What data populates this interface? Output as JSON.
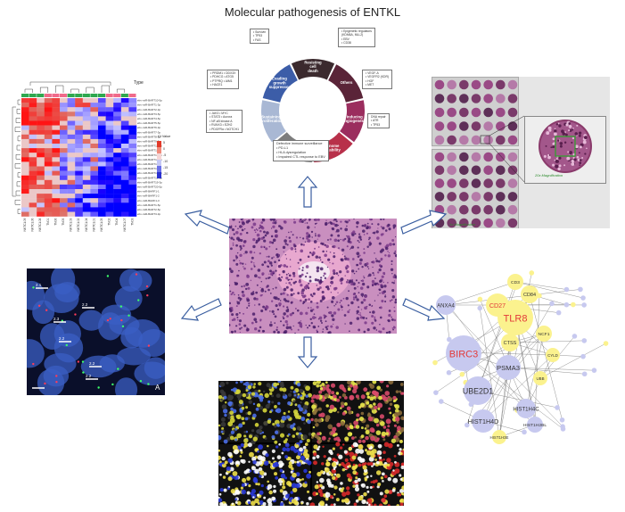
{
  "title": "Molecular pathogenesis of ENTKL",
  "hallmarks": {
    "segments": [
      {
        "label": "Others",
        "color": "#5a2438"
      },
      {
        "label": "Inducing angiogenesis",
        "color": "#9b2d5e"
      },
      {
        "label": "Genome instability",
        "color": "#b8304a"
      },
      {
        "label": "Immune Evasion",
        "color": "#7d7d7d"
      },
      {
        "label": "Sustaining proliferation",
        "color": "#a9b8d4"
      },
      {
        "label": "Evading growth suppressor",
        "color": "#3c5da8"
      },
      {
        "label": "Resisting cell death",
        "color": "#3b2a2e"
      }
    ],
    "boxes": {
      "resisting": [
        "• Survivin",
        "• TP53",
        "• FAS"
      ],
      "others": [
        "• Epigenetic regulators",
        "  (KDM6A, MLL2)",
        "• EBV",
        "• CD38"
      ],
      "angio": [
        "• VEGF-A",
        "• VEGFR2 (KDR)",
        "• HGF",
        "• MET"
      ],
      "genome": [
        "DNA repair",
        "• ATR",
        "• TP53"
      ],
      "immune": [
        "Defective immune surveillance",
        "• PD-L1",
        "• HLA dysregulation",
        "• Impaired CTL response to EBV"
      ],
      "proliferation": [
        "• JAK3    • MYC",
        "• STAT3   • Aurora",
        "• NF-κB     kinase A",
        "• RUNX3   • EZH2",
        "• PDGFRα  • NOTCH1"
      ],
      "growth": [
        "• PRDM1   • DDX3X",
        "• PDHCG   • ATG5",
        "• PTPRQ   • AIM1",
        "• HACE1"
      ]
    }
  },
  "heatmap": {
    "legend_label": "Type",
    "colorbar_label": "Ct Value",
    "colorbar_ticks": [
      "5",
      "0",
      "-5",
      "-10",
      "-15",
      "-20"
    ],
    "row_labels": [
      "ebv-miR-BART10-5p",
      "ebv-miR-BART1-3p",
      "ebv-miR-BART2-3p",
      "ebv-miR-BART3-5p",
      "ebv-miR-BART4-5p",
      "ebv-miR-BART5-5p",
      "ebv-miR-BART6-3p",
      "ebv-miR-BART7-3p",
      "ebv-miR-BART8-5p",
      "ebv-miR-BART9-3p",
      "ebv-miR-BART11-3p",
      "ebv-miR-BART12",
      "ebv-miR-BART13-3p",
      "ebv-miR-BART14-3p",
      "ebv-miR-BART15",
      "ebv-miR-BART16",
      "ebv-miR-BART17-5p",
      "ebv-miR-BART18-5p",
      "ebv-miR-BART19-3p",
      "ebv-miR-BART20-5p",
      "ebv-miR-BHRF1-1",
      "ebv-miR-BHRF1-2",
      "ebv-miR-BHRF1-3",
      "ebv-miR-BART1-5p",
      "ebv-miR-BART2-5p",
      "ebv-miR-BART3-3p"
    ],
    "col_labels": [
      "NKTCL09",
      "NKTCL06",
      "NKTCL08",
      "TN01",
      "TN06",
      "TN05",
      "NKTCL03",
      "NKTCL02",
      "NKTCL04",
      "NKTCL01",
      "NKTCL05",
      "TN02",
      "TN04",
      "NKTCL07",
      "TN03"
    ]
  },
  "tma": {
    "label_2x": "20x Magnification",
    "label_1x": "1x Magnification"
  },
  "fish": {
    "scale_labels": [
      "2.1",
      "2.2",
      "2.3",
      "2.2",
      "2.2",
      "2.2"
    ],
    "corner": "A"
  },
  "network": {
    "nodes": [
      {
        "label": "BIRC3",
        "color": "#e23a3a",
        "fill": "#c7c9ef"
      },
      {
        "label": "TLR8",
        "color": "#e23a3a",
        "fill": "#fbf28e"
      },
      {
        "label": "CD27",
        "color": "#e23a3a",
        "fill": "#fbf28e"
      },
      {
        "label": "UBE2D1",
        "color": "#333333",
        "fill": "#c7c9ef"
      },
      {
        "label": "PSMA3",
        "color": "#333333",
        "fill": "#c7c9ef"
      },
      {
        "label": "ANXA4",
        "color": "#333333",
        "fill": "#c7c9ef"
      },
      {
        "label": "HIST1H4D",
        "color": "#333333",
        "fill": "#c7c9ef"
      },
      {
        "label": "HIST1H4C",
        "color": "#333333",
        "fill": "#c7c9ef"
      },
      {
        "label": "CTSS",
        "color": "#333333",
        "fill": "#fbf28e"
      },
      {
        "label": "CD84",
        "color": "#333333",
        "fill": "#fbf28e"
      },
      {
        "label": "NCF1",
        "color": "#333333",
        "fill": "#fbf28e"
      },
      {
        "label": "CYLD",
        "color": "#333333",
        "fill": "#fbf28e"
      },
      {
        "label": "CD3",
        "color": "#333333",
        "fill": "#fbf28e"
      },
      {
        "label": "UBB",
        "color": "#333333",
        "fill": "#fbf28e"
      },
      {
        "label": "HIST1H2BL",
        "color": "#333333",
        "fill": "#c7c9ef"
      },
      {
        "label": "HIST1H3E",
        "color": "#333333",
        "fill": "#fbf28e"
      }
    ]
  }
}
